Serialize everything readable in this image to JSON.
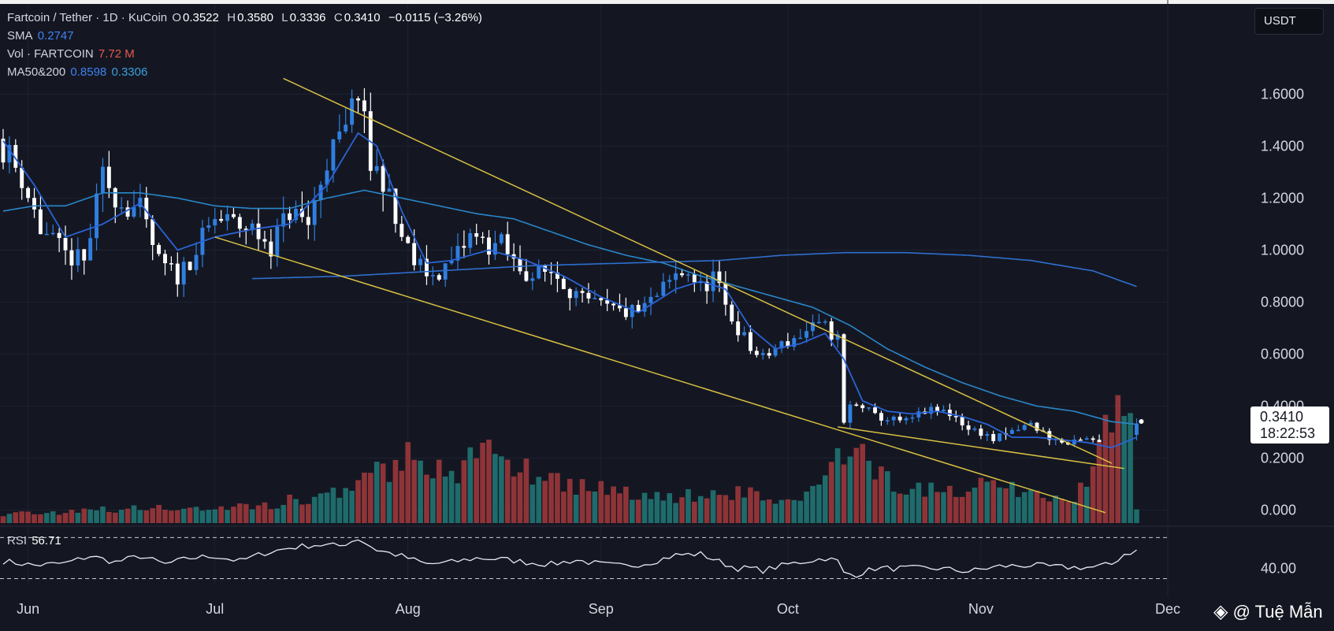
{
  "legend": {
    "symbol": "Fartcoin / Tether · 1D · KuCoin",
    "open_label": "O",
    "open": "0.3522",
    "high_label": "H",
    "high": "0.3580",
    "low_label": "L",
    "low": "0.3336",
    "close_label": "C",
    "close": "0.3410",
    "change": "−0.0115 (−3.26%)",
    "sma_label": "SMA",
    "sma_value": "0.2747",
    "vol_label": "Vol · FARTCOIN",
    "vol_value": "7.72 M",
    "ma_label": "MA50&200",
    "ma50_value": "0.8598",
    "ma200_value": "0.3306",
    "rsi_label": "RSI",
    "rsi_value": "56.71"
  },
  "currency": "USDT",
  "price_label": {
    "price": "0.3410",
    "countdown": "18:22:53"
  },
  "watermark": "@ Tuệ Mẫn",
  "colors": {
    "background": "#141722",
    "up": "#2f7fe0",
    "down": "#ffffff",
    "ma_fast": "#2a63d6",
    "ma_slow": "#2a86c9",
    "vol_up": "#1f6b6b",
    "vol_down": "#8e3438",
    "trendline": "#d8c042"
  },
  "chart_data": {
    "type": "candlestick",
    "title": "Fartcoin / Tether · 1D · KuCoin",
    "y_ticks": [
      "0.000",
      "0.2000",
      "0.4000",
      "0.6000",
      "0.8000",
      "1.0000",
      "1.2000",
      "1.4000",
      "1.6000"
    ],
    "x_ticks": [
      "Jun",
      "Jul",
      "Aug",
      "Sep",
      "Oct",
      "Nov",
      "Dec"
    ],
    "ylim": [
      -0.05,
      1.78
    ],
    "xlim": [
      0,
      187
    ],
    "x_tick_days": [
      4,
      34,
      65,
      96,
      126,
      157,
      187
    ],
    "rsi_ticks": [
      "40.00"
    ],
    "rsi_ylim": [
      25,
      78
    ],
    "rsi_bands": [
      30,
      70
    ],
    "close_anchors": [
      [
        0,
        1.4
      ],
      [
        3,
        1.28
      ],
      [
        6,
        1.08
      ],
      [
        10,
        0.98
      ],
      [
        13,
        0.95
      ],
      [
        16,
        1.28
      ],
      [
        19,
        1.18
      ],
      [
        22,
        1.15
      ],
      [
        25,
        0.95
      ],
      [
        28,
        0.9
      ],
      [
        31,
        1.0
      ],
      [
        34,
        1.12
      ],
      [
        37,
        1.1
      ],
      [
        40,
        1.08
      ],
      [
        43,
        1.02
      ],
      [
        46,
        1.15
      ],
      [
        49,
        1.1
      ],
      [
        52,
        1.35
      ],
      [
        55,
        1.45
      ],
      [
        57,
        1.62
      ],
      [
        59,
        1.32
      ],
      [
        61,
        1.28
      ],
      [
        63,
        1.1
      ],
      [
        66,
        0.95
      ],
      [
        69,
        0.9
      ],
      [
        72,
        0.95
      ],
      [
        75,
        1.05
      ],
      [
        78,
        1.02
      ],
      [
        80,
        1.02
      ],
      [
        82,
        0.95
      ],
      [
        85,
        0.9
      ],
      [
        88,
        0.92
      ],
      [
        90,
        0.88
      ],
      [
        93,
        0.8
      ],
      [
        96,
        0.78
      ],
      [
        99,
        0.76
      ],
      [
        102,
        0.76
      ],
      [
        105,
        0.82
      ],
      [
        108,
        0.9
      ],
      [
        110,
        0.92
      ],
      [
        112,
        0.85
      ],
      [
        114,
        0.9
      ],
      [
        116,
        0.78
      ],
      [
        118,
        0.7
      ],
      [
        120,
        0.62
      ],
      [
        122,
        0.58
      ],
      [
        124,
        0.62
      ],
      [
        127,
        0.66
      ],
      [
        130,
        0.7
      ],
      [
        132,
        0.7
      ],
      [
        134,
        0.66
      ],
      [
        135,
        0.33
      ],
      [
        136,
        0.4
      ],
      [
        138,
        0.4
      ],
      [
        140,
        0.36
      ],
      [
        142,
        0.35
      ],
      [
        145,
        0.34
      ],
      [
        148,
        0.38
      ],
      [
        151,
        0.38
      ],
      [
        153,
        0.36
      ],
      [
        155,
        0.31
      ],
      [
        157,
        0.3
      ],
      [
        159,
        0.27
      ],
      [
        162,
        0.3
      ],
      [
        165,
        0.33
      ],
      [
        168,
        0.28
      ],
      [
        171,
        0.25
      ],
      [
        174,
        0.27
      ],
      [
        177,
        0.25
      ],
      [
        178,
        0.22
      ],
      [
        179,
        0.22
      ],
      [
        180,
        0.27
      ],
      [
        181,
        0.3
      ],
      [
        182,
        0.34
      ]
    ],
    "ma_fast_anchors": [
      [
        0,
        1.42
      ],
      [
        5,
        1.25
      ],
      [
        10,
        1.05
      ],
      [
        16,
        1.1
      ],
      [
        22,
        1.18
      ],
      [
        28,
        1.0
      ],
      [
        34,
        1.05
      ],
      [
        40,
        1.08
      ],
      [
        46,
        1.1
      ],
      [
        52,
        1.25
      ],
      [
        57,
        1.45
      ],
      [
        60,
        1.4
      ],
      [
        64,
        1.15
      ],
      [
        68,
        0.95
      ],
      [
        72,
        0.96
      ],
      [
        78,
        1.0
      ],
      [
        84,
        0.96
      ],
      [
        90,
        0.9
      ],
      [
        96,
        0.82
      ],
      [
        102,
        0.76
      ],
      [
        108,
        0.85
      ],
      [
        112,
        0.88
      ],
      [
        116,
        0.85
      ],
      [
        120,
        0.7
      ],
      [
        124,
        0.62
      ],
      [
        128,
        0.64
      ],
      [
        132,
        0.68
      ],
      [
        135,
        0.58
      ],
      [
        138,
        0.42
      ],
      [
        142,
        0.38
      ],
      [
        146,
        0.37
      ],
      [
        150,
        0.38
      ],
      [
        154,
        0.36
      ],
      [
        158,
        0.33
      ],
      [
        162,
        0.28
      ],
      [
        166,
        0.28
      ],
      [
        170,
        0.27
      ],
      [
        174,
        0.26
      ],
      [
        178,
        0.24
      ],
      [
        182,
        0.28
      ]
    ],
    "ma_slow_anchors": [
      [
        0,
        1.15
      ],
      [
        5,
        1.17
      ],
      [
        10,
        1.17
      ],
      [
        16,
        1.22
      ],
      [
        22,
        1.22
      ],
      [
        28,
        1.2
      ],
      [
        34,
        1.17
      ],
      [
        40,
        1.16
      ],
      [
        46,
        1.16
      ],
      [
        52,
        1.2
      ],
      [
        58,
        1.23
      ],
      [
        64,
        1.2
      ],
      [
        70,
        1.17
      ],
      [
        76,
        1.14
      ],
      [
        82,
        1.12
      ],
      [
        88,
        1.07
      ],
      [
        94,
        1.02
      ],
      [
        100,
        0.98
      ],
      [
        106,
        0.95
      ],
      [
        112,
        0.9
      ],
      [
        118,
        0.86
      ],
      [
        124,
        0.82
      ],
      [
        130,
        0.78
      ],
      [
        136,
        0.71
      ],
      [
        142,
        0.62
      ],
      [
        148,
        0.55
      ],
      [
        154,
        0.49
      ],
      [
        160,
        0.44
      ],
      [
        166,
        0.4
      ],
      [
        172,
        0.38
      ],
      [
        178,
        0.34
      ],
      [
        182,
        0.33
      ]
    ],
    "ma200_anchors": [
      [
        40,
        0.89
      ],
      [
        55,
        0.9
      ],
      [
        70,
        0.92
      ],
      [
        85,
        0.94
      ],
      [
        100,
        0.95
      ],
      [
        115,
        0.96
      ],
      [
        125,
        0.98
      ],
      [
        135,
        0.99
      ],
      [
        145,
        0.99
      ],
      [
        155,
        0.98
      ],
      [
        165,
        0.96
      ],
      [
        175,
        0.92
      ],
      [
        182,
        0.86
      ]
    ],
    "volume_anchors": [
      [
        0,
        0.04
      ],
      [
        20,
        0.06
      ],
      [
        40,
        0.07
      ],
      [
        56,
        0.14
      ],
      [
        60,
        0.22
      ],
      [
        66,
        0.3
      ],
      [
        72,
        0.2
      ],
      [
        78,
        0.32
      ],
      [
        84,
        0.24
      ],
      [
        90,
        0.18
      ],
      [
        96,
        0.15
      ],
      [
        104,
        0.12
      ],
      [
        110,
        0.12
      ],
      [
        118,
        0.14
      ],
      [
        126,
        0.09
      ],
      [
        132,
        0.17
      ],
      [
        135,
        0.34
      ],
      [
        138,
        0.27
      ],
      [
        142,
        0.19
      ],
      [
        148,
        0.14
      ],
      [
        154,
        0.14
      ],
      [
        160,
        0.18
      ],
      [
        166,
        0.12
      ],
      [
        172,
        0.08
      ],
      [
        178,
        0.48
      ],
      [
        181,
        0.52
      ],
      [
        182,
        0.08
      ]
    ],
    "volume_max": 0.55,
    "rsi_anchors": [
      [
        0,
        47
      ],
      [
        5,
        43
      ],
      [
        10,
        45
      ],
      [
        14,
        52
      ],
      [
        18,
        46
      ],
      [
        22,
        52
      ],
      [
        26,
        44
      ],
      [
        30,
        50
      ],
      [
        34,
        52
      ],
      [
        38,
        47
      ],
      [
        42,
        55
      ],
      [
        46,
        60
      ],
      [
        50,
        63
      ],
      [
        54,
        62
      ],
      [
        57,
        69
      ],
      [
        60,
        58
      ],
      [
        64,
        52
      ],
      [
        68,
        44
      ],
      [
        72,
        46
      ],
      [
        76,
        50
      ],
      [
        80,
        49
      ],
      [
        84,
        46
      ],
      [
        88,
        44
      ],
      [
        92,
        48
      ],
      [
        96,
        44
      ],
      [
        100,
        42
      ],
      [
        104,
        46
      ],
      [
        108,
        53
      ],
      [
        112,
        54
      ],
      [
        116,
        44
      ],
      [
        118,
        40
      ],
      [
        120,
        40
      ],
      [
        122,
        38
      ],
      [
        126,
        44
      ],
      [
        130,
        48
      ],
      [
        132,
        50
      ],
      [
        134,
        47
      ],
      [
        135,
        35
      ],
      [
        137,
        34
      ],
      [
        140,
        40
      ],
      [
        145,
        40
      ],
      [
        150,
        40
      ],
      [
        155,
        37
      ],
      [
        160,
        42
      ],
      [
        165,
        43
      ],
      [
        170,
        41
      ],
      [
        175,
        41
      ],
      [
        178,
        44
      ],
      [
        180,
        54
      ],
      [
        182,
        57
      ]
    ],
    "trendlines": [
      {
        "from": [
          45,
          1.66
        ],
        "to": [
          178,
          0.18
        ]
      },
      {
        "from": [
          34,
          1.05
        ],
        "to": [
          177,
          -0.01
        ]
      },
      {
        "from": [
          134,
          0.32
        ],
        "to": [
          180,
          0.16
        ]
      }
    ]
  }
}
